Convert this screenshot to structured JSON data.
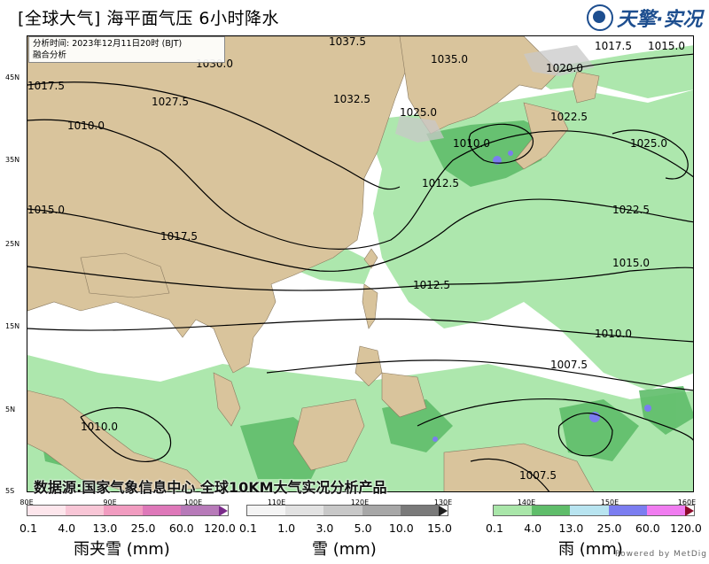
{
  "title": "[全球大气] 海平面气压 6小时降水",
  "logo": {
    "text": "天擎·实况",
    "icon": "globe-logo-icon"
  },
  "info": {
    "line1": "分析时间: 2023年12月11日20时 (BJT)",
    "line2": "融合分析"
  },
  "source": "数据源:国家气象信息中心 全球10KM大气实况分析产品",
  "axes": {
    "lat_labels": [
      "45N",
      "35N",
      "25N",
      "15N",
      "5N",
      "5S"
    ],
    "lon_labels": [
      "80E",
      "90E",
      "100E",
      "110E",
      "120E",
      "130E",
      "140E",
      "150E",
      "160E"
    ]
  },
  "isobars": [
    "1037.5",
    "1035.0",
    "1032.5",
    "1030.0",
    "1027.5",
    "1025.0",
    "1022.5",
    "1020.0",
    "1017.5",
    "1015.0",
    "1012.5",
    "1010.0",
    "1007.5"
  ],
  "legends": {
    "sleet": {
      "title": "雨夹雪 (mm)",
      "ticks": [
        "0.1",
        "4.0",
        "13.0",
        "25.0",
        "60.0",
        "120.0"
      ],
      "colors": [
        "#fde6ec",
        "#f8c6d6",
        "#f19cc0",
        "#de78b9",
        "#b77ab9"
      ],
      "arrow": "#7a2a8a"
    },
    "snow": {
      "title": "雪 (mm)",
      "ticks": [
        "0.1",
        "1.0",
        "3.0",
        "5.0",
        "10.0",
        "15.0"
      ],
      "colors": [
        "#f4f4f4",
        "#e2e2e2",
        "#c8c8c8",
        "#a7a7a7",
        "#7a7a7a"
      ],
      "arrow": "#202020"
    },
    "rain": {
      "title": "雨 (mm)",
      "ticks": [
        "0.1",
        "4.0",
        "13.0",
        "25.0",
        "60.0",
        "120.0"
      ],
      "colors": [
        "#a9e6a9",
        "#5fbd6a",
        "#b8e4f0",
        "#7b7df0",
        "#f07cf0"
      ],
      "arrow": "#8b0a2a"
    }
  },
  "colors": {
    "land": "#d9c49c",
    "sea": "#ffffff",
    "rain_light": "#a9e6a9",
    "rain_mid": "#5fbd6a",
    "border": "#8a7a60"
  },
  "powered": "Powered by MetDig"
}
